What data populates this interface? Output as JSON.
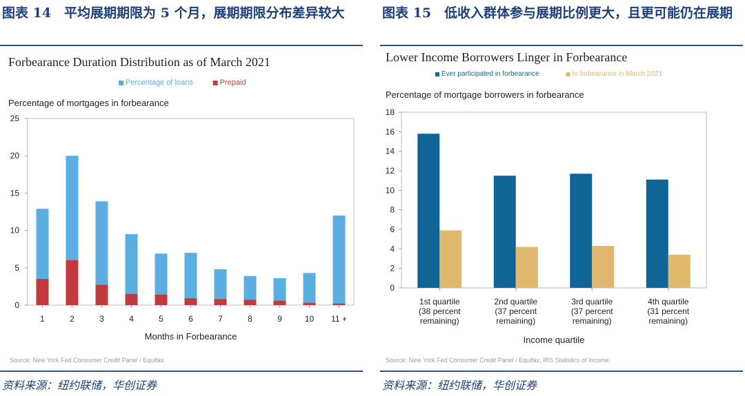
{
  "left": {
    "heading": "图表 14　平均展期期限为 5 个月，展期期限分布差异较大",
    "source_cn": "资料来源：纽约联储，华创证券",
    "chart_data": {
      "type": "bar",
      "title": "Forbearance Duration Distribution as of March 2021",
      "categories": [
        "1",
        "2",
        "3",
        "4",
        "5",
        "6",
        "7",
        "8",
        "9",
        "10",
        "11 +"
      ],
      "series": [
        {
          "name": "Percentage of loans",
          "color": "#5aaee2",
          "values": [
            12.9,
            20.0,
            13.9,
            9.5,
            6.9,
            7.0,
            4.8,
            3.9,
            3.6,
            4.3,
            12.0
          ]
        },
        {
          "name": "Prepaid",
          "color": "#c03a3e",
          "values": [
            3.5,
            6.0,
            2.7,
            1.5,
            1.4,
            0.9,
            0.8,
            0.7,
            0.6,
            0.3,
            0.2
          ]
        }
      ],
      "overlay": true,
      "xlabel": "Months in Forbearance",
      "ylabel": "Percentage of mortgages in forbearance",
      "ylim": [
        0,
        25
      ],
      "yticks": [
        0,
        5,
        10,
        15,
        20,
        25
      ],
      "source": "Source: New York Fed Consumer Credit Panel / Equifax.",
      "legend": "top"
    }
  },
  "right": {
    "heading": "图表 15　低收入群体参与展期比例更大，且更可能仍在展期",
    "source_cn": "资料来源：纽约联储，华创证券",
    "chart_data": {
      "type": "bar",
      "title": "Lower Income Borrowers Linger in Forbearance",
      "categories": [
        [
          "1st quartile",
          "(38 percent",
          "remaining)"
        ],
        [
          "2nd quartile",
          "(37 percent",
          "remaining)"
        ],
        [
          "3rd quartile",
          "(37 percent",
          "remaining)"
        ],
        [
          "4th quartile",
          "(31 percent",
          "remaining)"
        ]
      ],
      "series": [
        {
          "name": "Ever participated in forbearance",
          "color": "#0f6596",
          "values": [
            15.8,
            11.5,
            11.7,
            11.1
          ]
        },
        {
          "name": "In forbearance in March 2021",
          "color": "#dfb86d",
          "values": [
            5.9,
            4.2,
            4.3,
            3.4
          ]
        }
      ],
      "overlay": false,
      "xlabel": "Income quartile",
      "ylabel": "Percentage of mortgage borrowers in forbearance",
      "ylim": [
        0,
        18
      ],
      "yticks": [
        0,
        2,
        4,
        6,
        8,
        10,
        12,
        14,
        16,
        18
      ],
      "source": "Source: New York Fed Consumer Credit Panel / Equifax; IRS Statistics of Income.",
      "legend": "top"
    }
  }
}
